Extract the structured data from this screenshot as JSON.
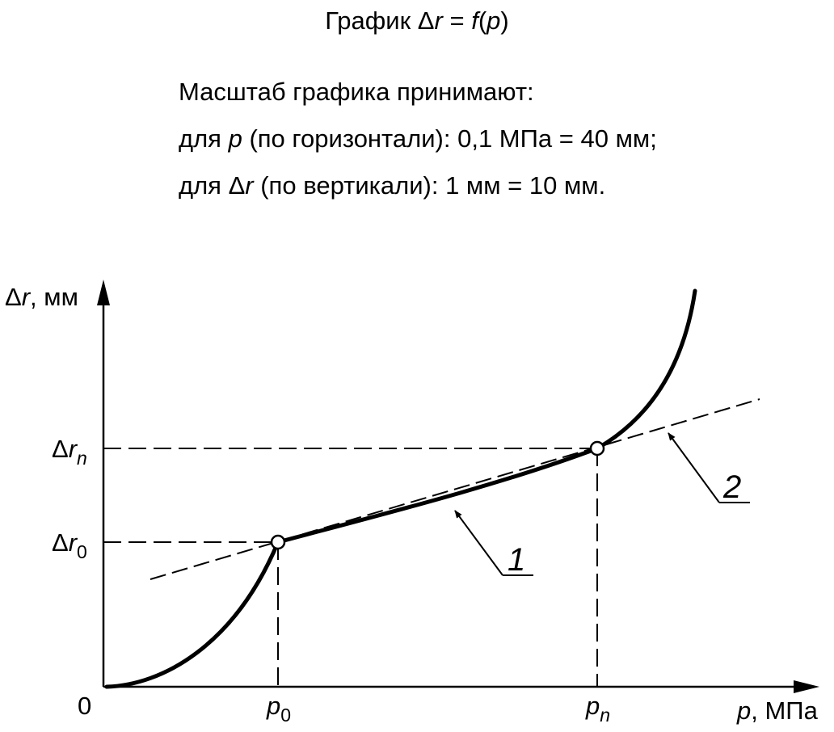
{
  "title": {
    "prefix": "График ",
    "delta": "Δ",
    "var_r": "r",
    "mid": " = ",
    "func": "f",
    "open": "(",
    "arg": "p",
    "close": ")"
  },
  "scale_note": {
    "line1": "Масштаб графика принимают:",
    "line2_pre": "для ",
    "line2_var": "p",
    "line2_post": " (по горизонтали): 0,1 МПа = 40 мм;",
    "line3_pre": "для Δ",
    "line3_var": "r",
    "line3_post": " (по вертикали): 1 мм = 10 мм."
  },
  "chart_data": {
    "type": "line",
    "xlabel": {
      "var": "p",
      "unit": ", МПа"
    },
    "ylabel": {
      "delta": "Δ",
      "var": "r",
      "unit": ", мм"
    },
    "origin_label": "0",
    "x_ticks": [
      {
        "var": "p",
        "sub": "0"
      },
      {
        "var": "p",
        "sub": "n"
      }
    ],
    "y_ticks": [
      {
        "delta": "Δ",
        "var": "r",
        "sub": "0"
      },
      {
        "delta": "Δ",
        "var": "r",
        "sub": "n"
      }
    ],
    "callouts": [
      {
        "label": "1",
        "target": "curve"
      },
      {
        "label": "2",
        "target": "tangent-line"
      }
    ],
    "colors": {
      "ink": "#000000",
      "background": "#ffffff"
    }
  }
}
